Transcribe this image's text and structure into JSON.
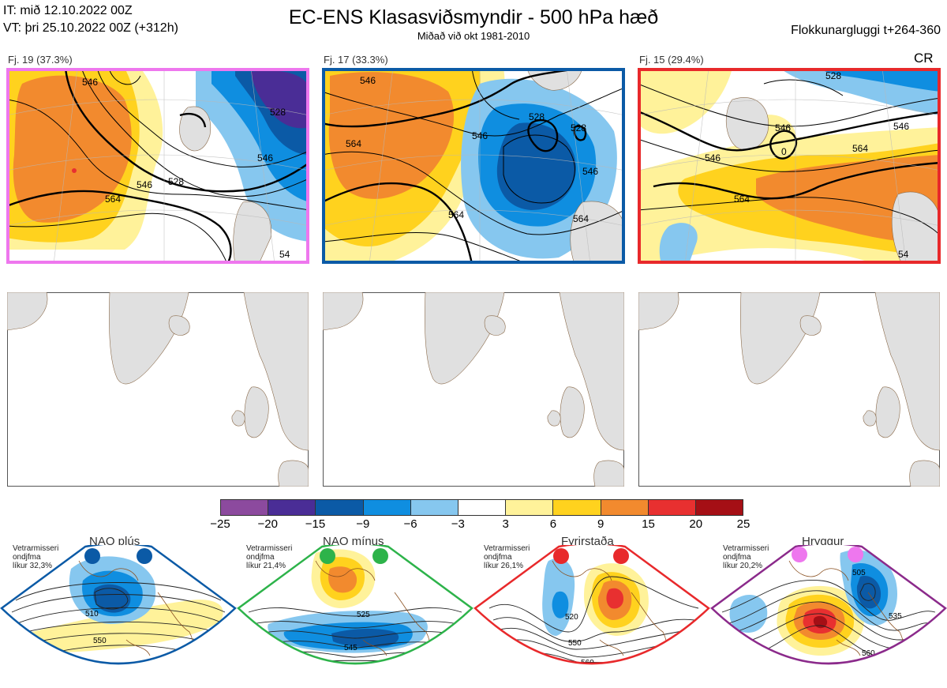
{
  "header": {
    "init_time": "IT: mið 12.10.2022 00Z",
    "valid_time": "VT: þri 25.10.2022 00Z  (+312h)",
    "title": "EC-ENS Klasasviðsmyndir - 500 hPa hæð",
    "subtitle": "Miðað við okt 1981-2010",
    "window": "Flokkunargluggi t+264-360"
  },
  "clusters": [
    {
      "label": "Fj. 19 (37.3%)",
      "frame_color": "#ee77ee",
      "contours": [
        "546",
        "528",
        "546",
        "564",
        "546",
        "528",
        "546",
        "54"
      ]
    },
    {
      "label": "Fj. 17 (33.3%)",
      "frame_color": "#0b5aa6",
      "contours": [
        "546",
        "564",
        "546",
        "528",
        "528",
        "546",
        "564",
        "564",
        "546"
      ]
    },
    {
      "label": "Fj. 15 (29.4%)",
      "frame_color": "#e8292b",
      "contours": [
        "528",
        "546",
        "546",
        "546",
        "564",
        "564",
        "0",
        "54"
      ],
      "tag": "CR"
    }
  ],
  "colorbar": {
    "ticks": [
      "−25",
      "−20",
      "−15",
      "−9",
      "−6",
      "−3",
      "3",
      "6",
      "9",
      "15",
      "20",
      "25"
    ],
    "colors": [
      "#8c4a9e",
      "#4a2d96",
      "#0b5aa6",
      "#0f8ee0",
      "#86c7ef",
      "#ffffff",
      "#fff29a",
      "#ffd21e",
      "#f28a2e",
      "#e83030",
      "#a50f15"
    ]
  },
  "regimes": [
    {
      "name": "NAO plús",
      "info": [
        "Vetrarmisseri",
        "ondjfma",
        "líkur 32,3%"
      ],
      "marker_color": "#0b5aa6",
      "border_color": "#0b5aa6",
      "contours": [
        "510",
        "550"
      ]
    },
    {
      "name": "NAO mínus",
      "info": [
        "Vetrarmisseri",
        "ondjfma",
        "líkur 21,4%"
      ],
      "marker_color": "#2db34a",
      "border_color": "#2db34a",
      "contours": [
        "525",
        "545",
        "565"
      ]
    },
    {
      "name": "Fyrirstaða",
      "info": [
        "Vetrarmisseri",
        "ondjfma",
        "líkur 26,1%"
      ],
      "marker_color": "#e8292b",
      "border_color": "#e8292b",
      "contours": [
        "520",
        "550",
        "560"
      ]
    },
    {
      "name": "Hryggur",
      "info": [
        "Vetrarmisseri",
        "ondjfma",
        "líkur 20,2%"
      ],
      "marker_color": "#ee77ee",
      "border_color": "#8b2a8b",
      "contours": [
        "505",
        "535",
        "560"
      ]
    }
  ]
}
